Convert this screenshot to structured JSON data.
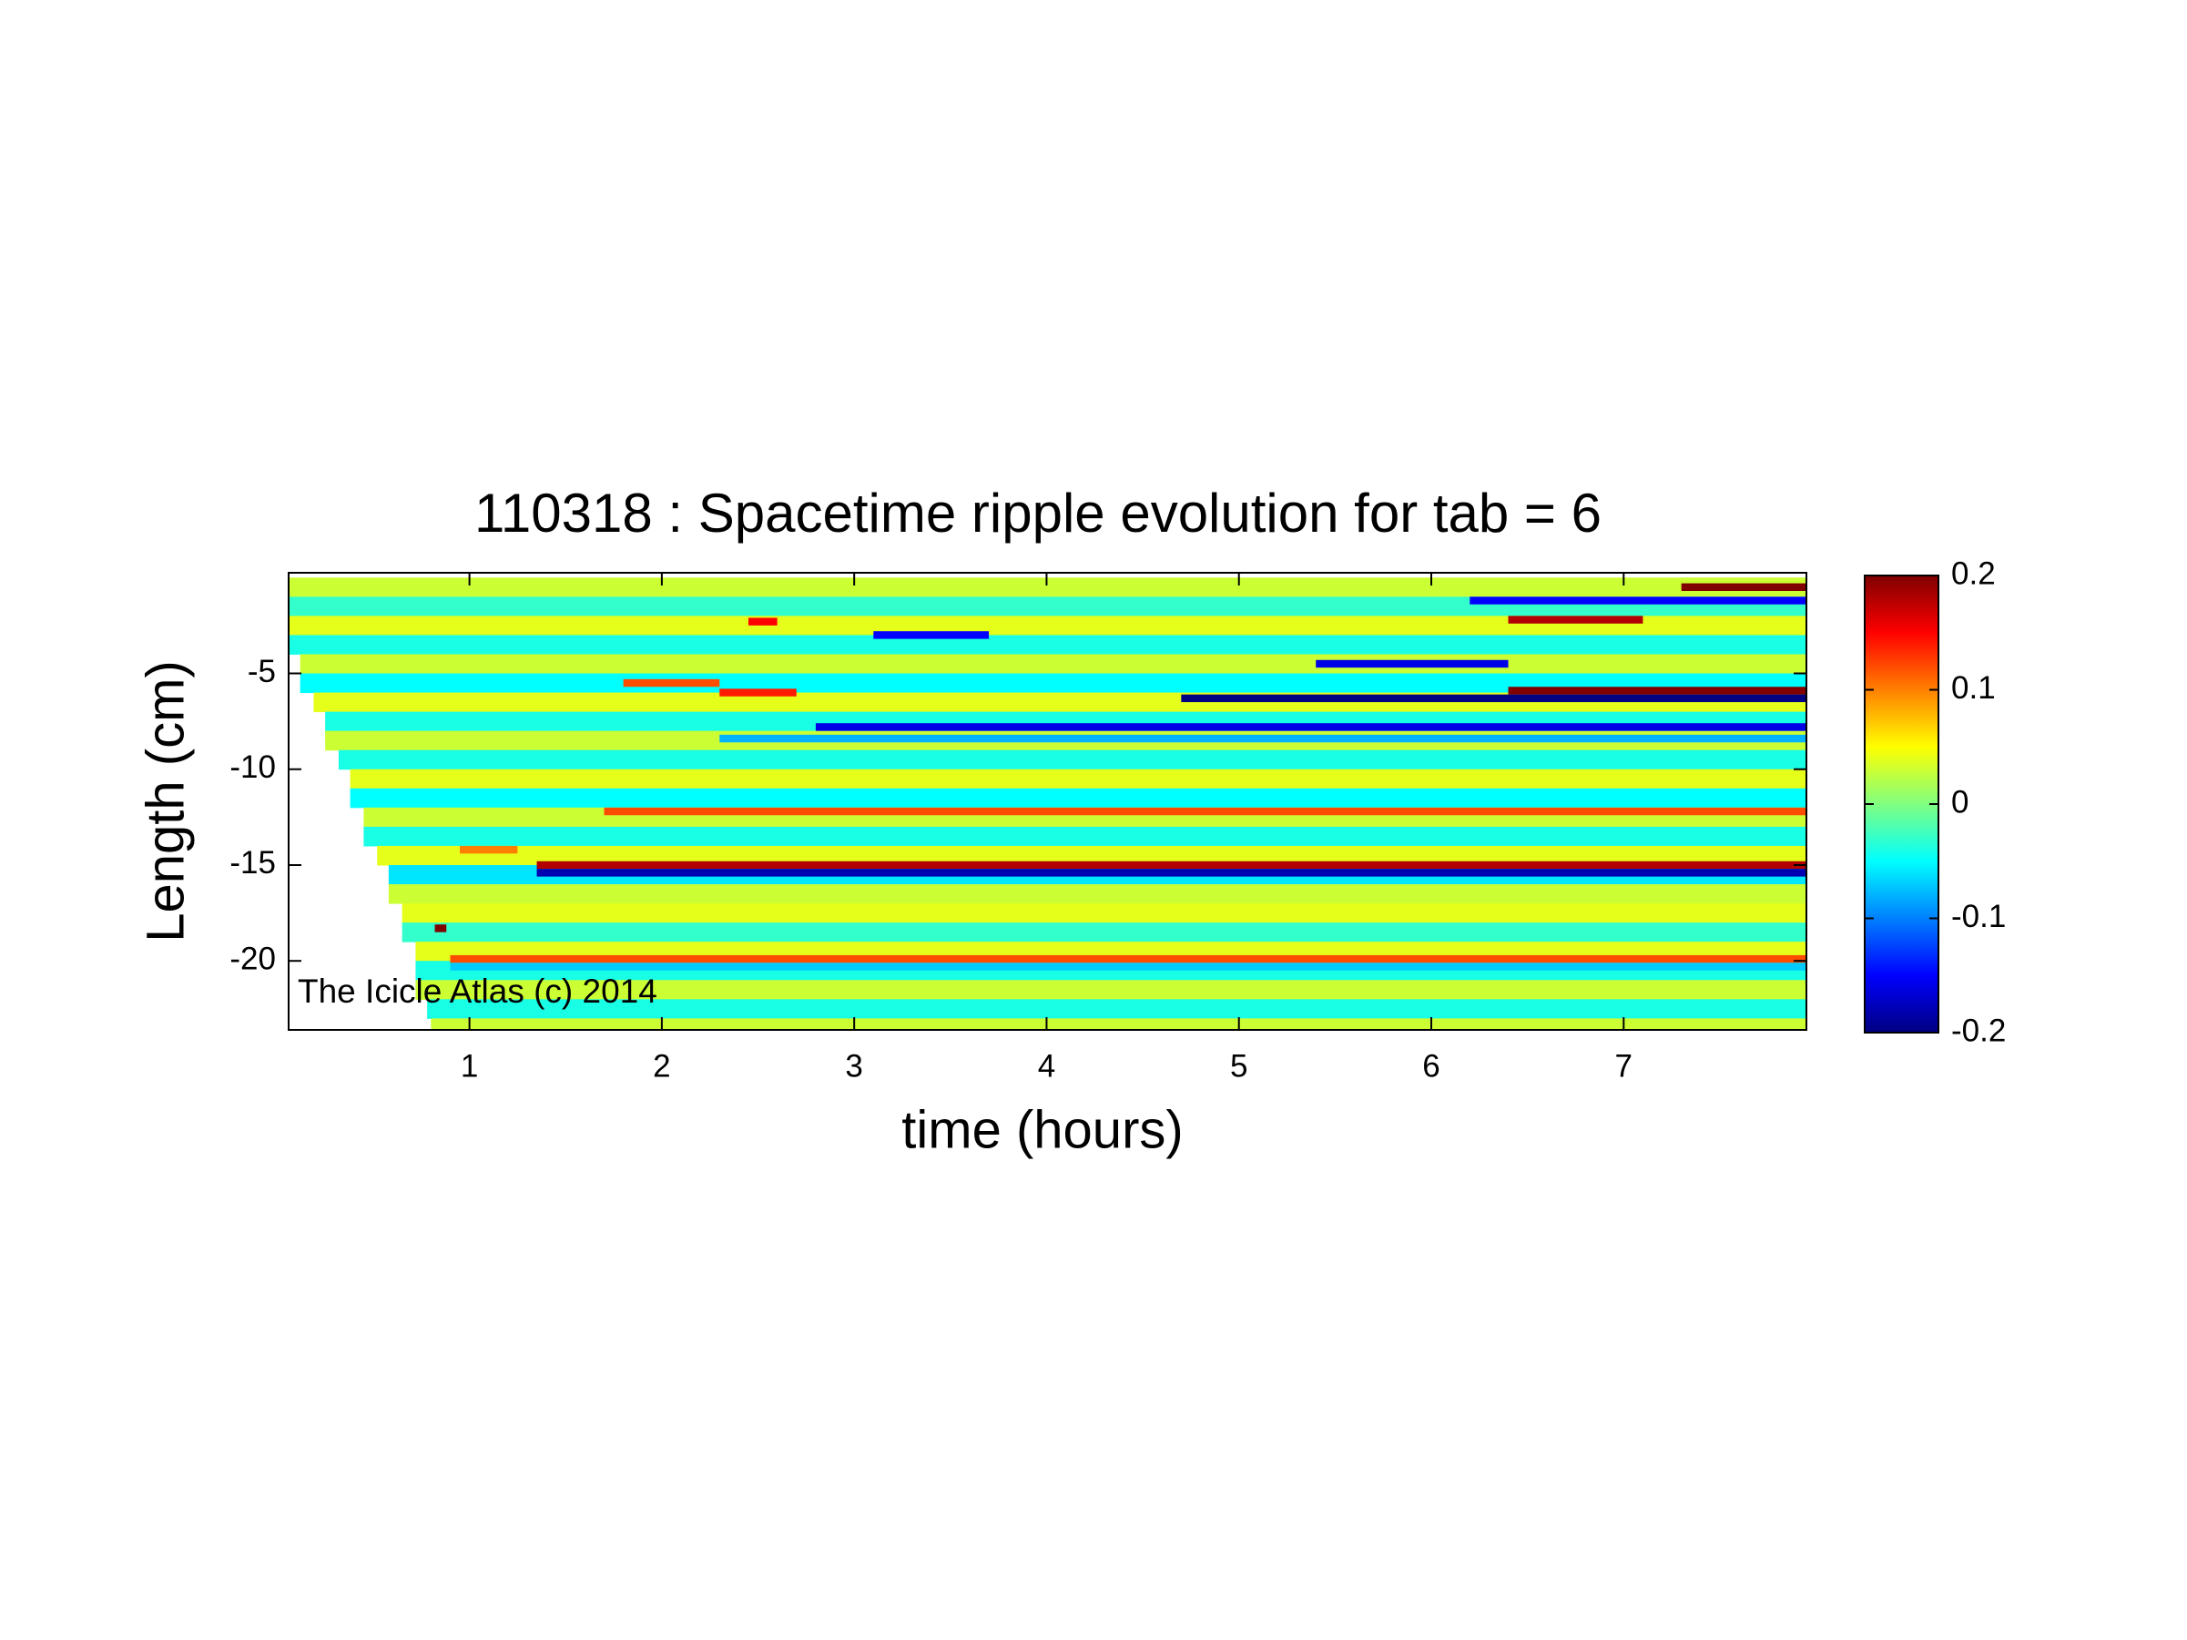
{
  "chart_data": {
    "type": "heatmap",
    "title": "110318 : Spacetime ripple evolution for tab = 6",
    "xlabel": "time (hours)",
    "ylabel": "Length (cm)",
    "annotation": "The Icicle Atlas (c) 2014",
    "xlim": [
      0.06,
      7.95
    ],
    "xticks": [
      1,
      2,
      3,
      4,
      5,
      6,
      7
    ],
    "ylim": [
      -23.6,
      0.25
    ],
    "yticks": [
      -5,
      -10,
      -15,
      -20
    ],
    "clim": [
      -0.2,
      0.2
    ],
    "cticks": [
      0.2,
      0.1,
      0,
      -0.1,
      -0.2
    ],
    "colormap": "jet",
    "rows": {
      "y": [
        -0.5,
        -1.5,
        -2.5,
        -3.5,
        -4.5,
        -5.5,
        -6.5,
        -7.5,
        -8.5,
        -9.5,
        -10.5,
        -11.5,
        -12.5,
        -13.5,
        -14.5,
        -15.5,
        -16.5,
        -17.5,
        -18.5,
        -19.5,
        -20.5,
        -21.5,
        -22.5,
        -23.5
      ],
      "x_start": [
        0.06,
        0.06,
        0.06,
        0.06,
        0.12,
        0.12,
        0.19,
        0.25,
        0.25,
        0.32,
        0.38,
        0.38,
        0.45,
        0.45,
        0.52,
        0.58,
        0.58,
        0.65,
        0.65,
        0.72,
        0.72,
        0.72,
        0.78,
        0.8
      ],
      "values": [
        0.03,
        -0.03,
        0.04,
        -0.04,
        0.03,
        -0.05,
        0.04,
        -0.04,
        0.03,
        -0.04,
        0.04,
        -0.05,
        0.03,
        -0.04,
        0.04,
        -0.06,
        0.03,
        0.04,
        -0.03,
        0.04,
        -0.04,
        0.03,
        -0.04,
        0.03
      ]
    },
    "stripes": [
      {
        "y": -0.5,
        "x_start": 7.3,
        "x_end": 7.95,
        "value": 0.2
      },
      {
        "y": -1.2,
        "x_start": 6.2,
        "x_end": 7.95,
        "value": -0.15
      },
      {
        "y": -2.2,
        "x_start": 6.4,
        "x_end": 7.1,
        "value": 0.18
      },
      {
        "y": -2.3,
        "x_start": 2.45,
        "x_end": 2.6,
        "value": 0.15
      },
      {
        "y": -3.0,
        "x_start": 3.1,
        "x_end": 3.7,
        "value": -0.15
      },
      {
        "y": -4.5,
        "x_start": 5.4,
        "x_end": 6.4,
        "value": -0.16
      },
      {
        "y": -5.5,
        "x_start": 1.8,
        "x_end": 2.3,
        "value": 0.12
      },
      {
        "y": -5.9,
        "x_start": 6.4,
        "x_end": 7.95,
        "value": 0.2
      },
      {
        "y": -6.3,
        "x_start": 4.7,
        "x_end": 7.95,
        "value": -0.2
      },
      {
        "y": -6.0,
        "x_start": 2.3,
        "x_end": 2.7,
        "value": 0.14
      },
      {
        "y": -7.8,
        "x_start": 2.8,
        "x_end": 7.95,
        "value": -0.16
      },
      {
        "y": -8.4,
        "x_start": 2.3,
        "x_end": 7.95,
        "value": -0.08
      },
      {
        "y": -12.2,
        "x_start": 1.7,
        "x_end": 7.95,
        "value": 0.12
      },
      {
        "y": -15.0,
        "x_start": 1.35,
        "x_end": 7.95,
        "value": 0.18
      },
      {
        "y": -15.4,
        "x_start": 1.35,
        "x_end": 7.95,
        "value": -0.18
      },
      {
        "y": -14.2,
        "x_start": 0.95,
        "x_end": 1.25,
        "value": 0.1
      },
      {
        "y": -18.3,
        "x_start": 0.82,
        "x_end": 0.88,
        "value": 0.2
      },
      {
        "y": -19.9,
        "x_start": 0.9,
        "x_end": 7.95,
        "value": 0.12
      },
      {
        "y": -20.3,
        "x_start": 0.9,
        "x_end": 7.95,
        "value": -0.07
      }
    ]
  }
}
